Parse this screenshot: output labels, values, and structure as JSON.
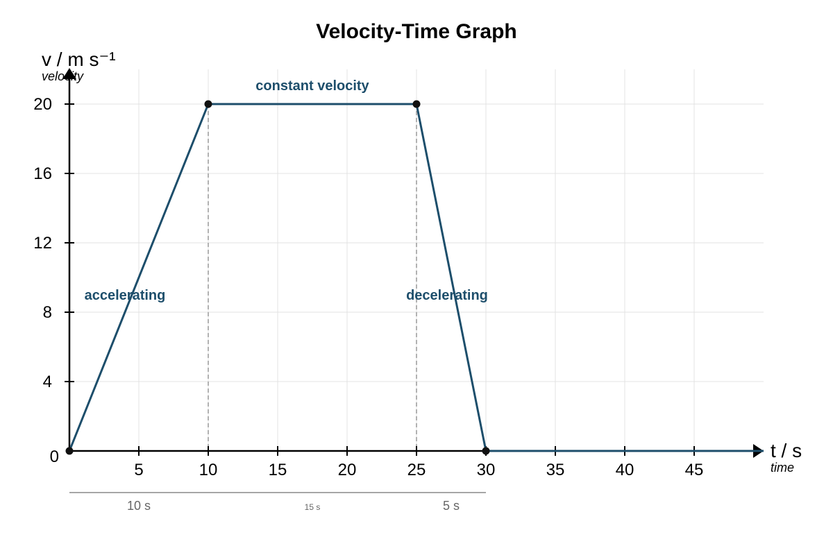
{
  "chart_data": {
    "type": "line",
    "title": "Velocity-Time Graph",
    "xlabel": "t / s",
    "xlabel_sub": "time",
    "ylabel": "v / m s⁻¹",
    "ylabel_sub": "velocity",
    "xlim": [
      0,
      50
    ],
    "ylim": [
      0,
      20
    ],
    "x_ticks": [
      5,
      10,
      15,
      20,
      25,
      30,
      35,
      40,
      45
    ],
    "y_ticks": [
      0,
      4,
      8,
      12,
      16,
      20
    ],
    "x_grid": [
      5,
      10,
      15,
      20,
      25,
      30,
      35,
      40,
      45
    ],
    "grid": true,
    "line_color": "#1d4e6b",
    "series": [
      {
        "points": [
          {
            "t": 0,
            "v": 0
          },
          {
            "t": 10,
            "v": 20
          },
          {
            "t": 25,
            "v": 20
          },
          {
            "t": 30,
            "v": 0
          },
          {
            "t": 50,
            "v": 0
          }
        ],
        "markers": [
          {
            "t": 0,
            "v": 0
          },
          {
            "t": 10,
            "v": 20
          },
          {
            "t": 25,
            "v": 20
          },
          {
            "t": 30,
            "v": 0
          }
        ]
      }
    ],
    "dashed_lines": [
      10,
      25
    ],
    "annotations": [
      {
        "text": "constant velocity",
        "t": 17.5,
        "v": 20
      },
      {
        "text": "accelerating",
        "t": 4,
        "v": 9
      },
      {
        "text": "decelerating",
        "t": 27.2,
        "v": 9
      }
    ],
    "durations": {
      "span": [
        0,
        30
      ],
      "items": [
        {
          "text": "10 s",
          "t": 5,
          "small": false
        },
        {
          "text": "15 s",
          "t": 17.5,
          "small": true
        },
        {
          "text": "5 s",
          "t": 27.5,
          "small": false
        }
      ]
    }
  }
}
